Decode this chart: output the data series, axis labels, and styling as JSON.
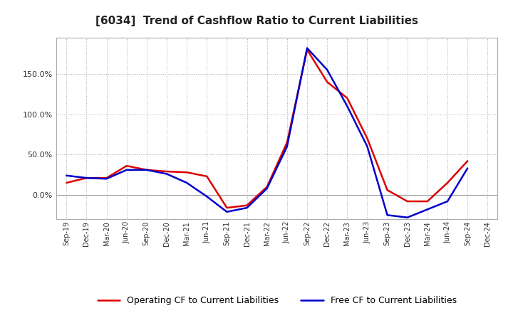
{
  "title": "[6034]  Trend of Cashflow Ratio to Current Liabilities",
  "x_labels": [
    "Sep-19",
    "Dec-19",
    "Mar-20",
    "Jun-20",
    "Sep-20",
    "Dec-20",
    "Mar-21",
    "Jun-21",
    "Sep-21",
    "Dec-21",
    "Mar-22",
    "Jun-22",
    "Sep-22",
    "Dec-22",
    "Mar-23",
    "Jun-23",
    "Sep-23",
    "Dec-23",
    "Mar-24",
    "Jun-24",
    "Sep-24",
    "Dec-24"
  ],
  "operating_cf": [
    0.15,
    0.21,
    0.21,
    0.36,
    0.31,
    0.29,
    0.28,
    0.23,
    -0.16,
    -0.13,
    0.1,
    0.65,
    1.8,
    1.4,
    1.2,
    0.7,
    0.06,
    -0.08,
    -0.08,
    0.15,
    0.42,
    null
  ],
  "free_cf": [
    0.24,
    0.21,
    0.2,
    0.31,
    0.31,
    0.26,
    0.15,
    -0.02,
    -0.21,
    -0.16,
    0.08,
    0.6,
    1.82,
    1.55,
    1.1,
    0.6,
    -0.25,
    -0.28,
    -0.18,
    -0.08,
    0.33,
    null
  ],
  "operating_color": "#dd0000",
  "free_color": "#0000cc",
  "background_color": "#ffffff",
  "grid_color": "#aaaaaa",
  "ylim": [
    -0.3,
    1.95
  ],
  "ytick_vals": [
    0.0,
    0.5,
    1.0,
    1.5
  ],
  "ytick_labels": [
    "0.0%",
    "50.0%",
    "100.0%",
    "150.0%"
  ],
  "legend_labels": [
    "Operating CF to Current Liabilities",
    "Free CF to Current Liabilities"
  ],
  "linewidth": 1.8
}
